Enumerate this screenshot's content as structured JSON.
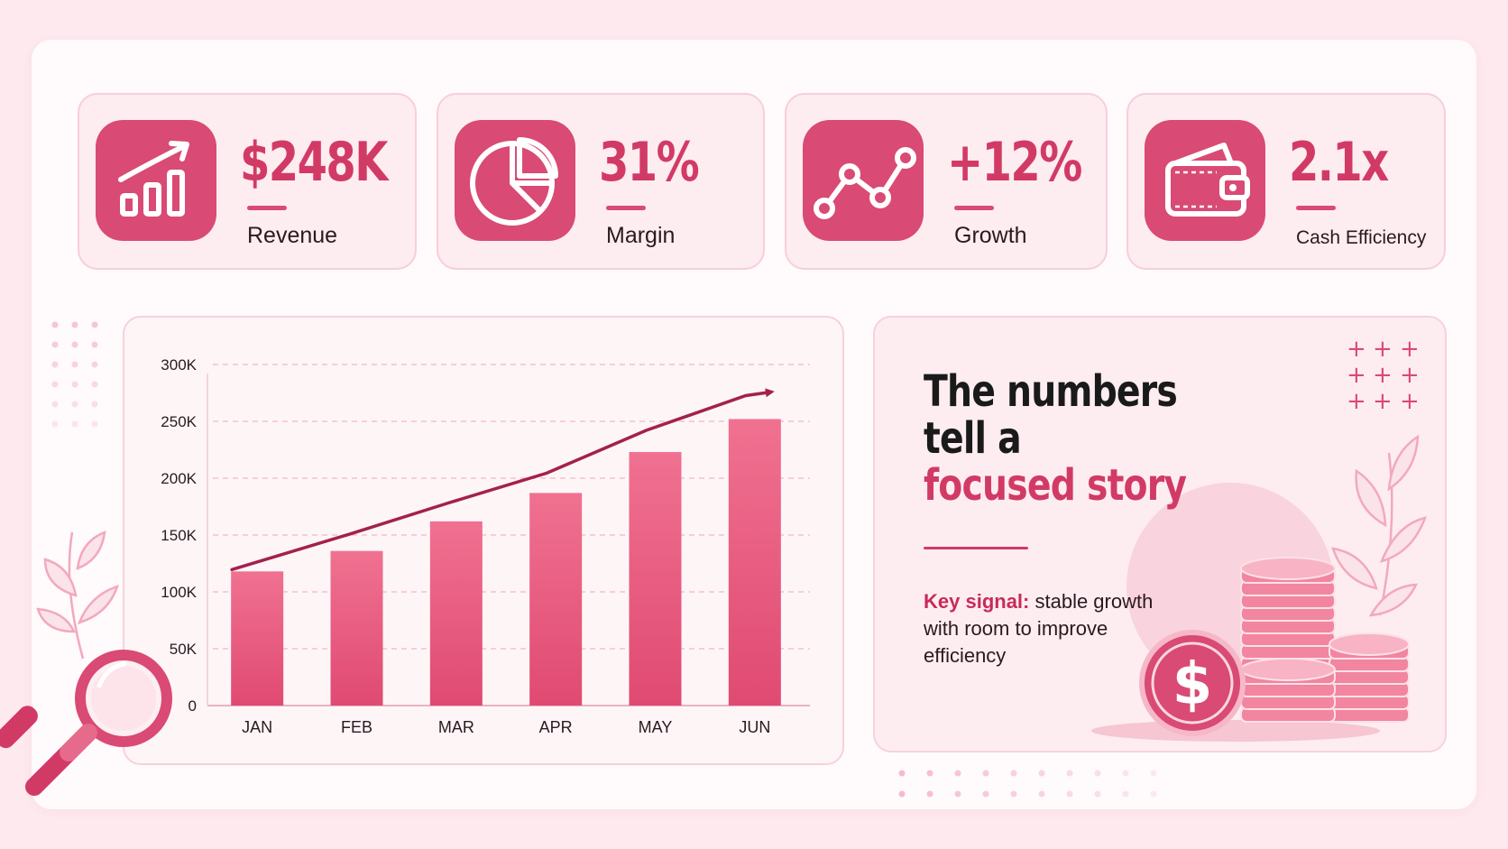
{
  "colors": {
    "accent": "#d94a74",
    "accent_dark": "#a3214d",
    "bg": "#fde9ee"
  },
  "kpis": [
    {
      "icon": "bar-chart-growth-icon",
      "value": "$248K",
      "label": "Revenue"
    },
    {
      "icon": "pie-chart-icon",
      "value": "31%",
      "label": "Margin"
    },
    {
      "icon": "line-trend-icon",
      "value": "+12%",
      "label": "Growth"
    },
    {
      "icon": "wallet-icon",
      "value": "2.1x",
      "label": "Cash Efficiency"
    }
  ],
  "chart_data": {
    "type": "bar",
    "categories": [
      "JAN",
      "FEB",
      "MAR",
      "APR",
      "MAY",
      "JUN"
    ],
    "values": [
      118000,
      136000,
      162000,
      187000,
      223000,
      252000
    ],
    "ylim": [
      0,
      300000
    ],
    "yticks": [
      "0",
      "50K",
      "100K",
      "150K",
      "200K",
      "250K",
      "300K"
    ],
    "trend": "rising arrow above bars",
    "grid": "dashed horizontal",
    "title": "",
    "xlabel": "",
    "ylabel": ""
  },
  "story": {
    "line1": "The numbers",
    "line2": "tell a",
    "line3": "focused story",
    "signal_label": "Key signal:",
    "signal_text": " stable growth with room to improve efficiency"
  },
  "decor": {
    "magnifier": "magnifier-icon",
    "coins": "coin-stack-icon",
    "dollar": "dollar-coin-icon",
    "leaves": "leaf-icon"
  }
}
